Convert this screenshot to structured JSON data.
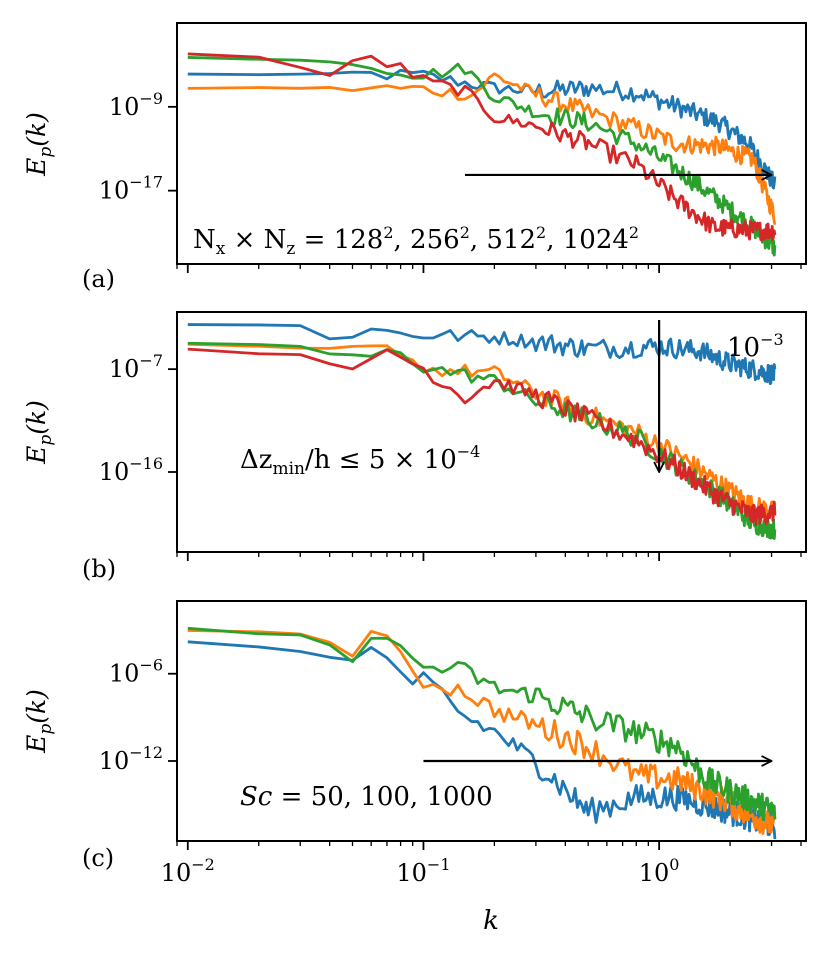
{
  "colors": {
    "c1": "#1f77b4",
    "c2": "#ff7f0e",
    "c3": "#2ca02c",
    "c4": "#d62728"
  },
  "figure": {
    "xlabel": "k",
    "xscale": "log",
    "xlim": [
      0.009,
      4.2
    ],
    "xticks": [
      {
        "value": 0.01,
        "base": "10",
        "exp": "−2"
      },
      {
        "value": 0.1,
        "base": "10",
        "exp": "−1"
      },
      {
        "value": 1,
        "base": "10",
        "exp": "0"
      }
    ]
  },
  "chart_data": [
    {
      "type": "line",
      "panel_label": "(a)",
      "ylabel": "E_p(k)",
      "yscale": "log",
      "ylim_log10": [
        -24,
        -1
      ],
      "yticks": [
        {
          "log10": -9,
          "base": "10",
          "exp": "−9"
        },
        {
          "log10": -17,
          "base": "10",
          "exp": "−17"
        }
      ],
      "annotation": "N_x × N_z = 128², 256², 512², 1024²",
      "arrow": {
        "from": [
          0.15,
          -15.5
        ],
        "to": [
          3.0,
          -15.5
        ]
      },
      "series": [
        {
          "color_key": "c1",
          "kmax": 3.1,
          "points": [
            [
              0.01,
              -5.9
            ],
            [
              0.05,
              -5.9
            ],
            [
              0.1,
              -6.0
            ],
            [
              0.2,
              -7.2
            ],
            [
              0.3,
              -7.5
            ],
            [
              0.5,
              -7.2
            ],
            [
              0.8,
              -7.6
            ],
            [
              1.2,
              -9.0
            ],
            [
              1.8,
              -10.5
            ],
            [
              2.4,
              -12.5
            ],
            [
              3.1,
              -16.5
            ]
          ]
        },
        {
          "color_key": "c2",
          "kmax": 3.1,
          "points": [
            [
              0.01,
              -7.2
            ],
            [
              0.05,
              -7.2
            ],
            [
              0.1,
              -7.3
            ],
            [
              0.16,
              -7.9
            ],
            [
              0.2,
              -6.0
            ],
            [
              0.3,
              -7.8
            ],
            [
              0.5,
              -9.5
            ],
            [
              0.8,
              -11.0
            ],
            [
              1.2,
              -12.5
            ],
            [
              1.8,
              -12.8
            ],
            [
              2.5,
              -14.0
            ],
            [
              3.1,
              -19.5
            ]
          ]
        },
        {
          "color_key": "c3",
          "kmax": 3.1,
          "points": [
            [
              0.01,
              -4.3
            ],
            [
              0.05,
              -4.7
            ],
            [
              0.1,
              -6.0
            ],
            [
              0.15,
              -5.3
            ],
            [
              0.2,
              -8.0
            ],
            [
              0.3,
              -9.5
            ],
            [
              0.5,
              -10.5
            ],
            [
              0.8,
              -12.5
            ],
            [
              1.2,
              -15.0
            ],
            [
              1.8,
              -18.0
            ],
            [
              2.5,
              -20.5
            ],
            [
              3.1,
              -22.5
            ]
          ]
        },
        {
          "color_key": "c4",
          "kmax": 3.1,
          "points": [
            [
              0.01,
              -4.0
            ],
            [
              0.02,
              -4.2
            ],
            [
              0.04,
              -6.0
            ],
            [
              0.06,
              -4.3
            ],
            [
              0.08,
              -5.3
            ],
            [
              0.1,
              -6.5
            ],
            [
              0.15,
              -7.5
            ],
            [
              0.2,
              -10.0
            ],
            [
              0.3,
              -10.8
            ],
            [
              0.5,
              -12.5
            ],
            [
              0.8,
              -14.5
            ],
            [
              1.2,
              -18.0
            ],
            [
              1.7,
              -20.5
            ],
            [
              2.5,
              -20.8
            ],
            [
              3.1,
              -20.8
            ]
          ]
        }
      ]
    },
    {
      "type": "line",
      "panel_label": "(b)",
      "ylabel": "E_p(k)",
      "yscale": "log",
      "ylim_log10": [
        -23,
        -2
      ],
      "yticks": [
        {
          "log10": -7,
          "base": "10",
          "exp": "−7"
        },
        {
          "log10": -16,
          "base": "10",
          "exp": "−16"
        }
      ],
      "annotation": "Δz_min / h ≤ 5 × 10⁻⁴",
      "annotation2": "10⁻³",
      "arrow": {
        "from": [
          1.0,
          -2.7
        ],
        "to": [
          1.0,
          -16.0
        ]
      },
      "series": [
        {
          "color_key": "c1",
          "kmax": 3.1,
          "points": [
            [
              0.01,
              -3.1
            ],
            [
              0.03,
              -3.2
            ],
            [
              0.04,
              -4.3
            ],
            [
              0.06,
              -3.6
            ],
            [
              0.1,
              -4.0
            ],
            [
              0.2,
              -4.2
            ],
            [
              0.3,
              -4.6
            ],
            [
              0.5,
              -5.2
            ],
            [
              1.0,
              -5.0
            ],
            [
              1.5,
              -5.4
            ],
            [
              2.0,
              -6.5
            ],
            [
              3.1,
              -7.5
            ]
          ]
        },
        {
          "color_key": "c2",
          "kmax": 3.1,
          "points": [
            [
              0.01,
              -4.9
            ],
            [
              0.05,
              -5.3
            ],
            [
              0.08,
              -5.3
            ],
            [
              0.1,
              -7.0
            ],
            [
              0.2,
              -7.3
            ],
            [
              0.3,
              -9.0
            ],
            [
              0.5,
              -11.0
            ],
            [
              0.8,
              -12.5
            ],
            [
              1.2,
              -14.5
            ],
            [
              1.8,
              -17.0
            ],
            [
              2.5,
              -19.0
            ],
            [
              3.1,
              -19.5
            ]
          ]
        },
        {
          "color_key": "c3",
          "kmax": 3.1,
          "points": [
            [
              0.01,
              -4.7
            ],
            [
              0.03,
              -5.0
            ],
            [
              0.05,
              -6.2
            ],
            [
              0.08,
              -5.4
            ],
            [
              0.1,
              -6.8
            ],
            [
              0.2,
              -8.0
            ],
            [
              0.3,
              -9.8
            ],
            [
              0.5,
              -11.3
            ],
            [
              0.8,
              -13.0
            ],
            [
              1.2,
              -15.5
            ],
            [
              1.8,
              -18.0
            ],
            [
              2.5,
              -20.5
            ],
            [
              3.1,
              -21.0
            ]
          ]
        },
        {
          "color_key": "c4",
          "kmax": 3.1,
          "points": [
            [
              0.01,
              -5.2
            ],
            [
              0.03,
              -5.8
            ],
            [
              0.05,
              -7.2
            ],
            [
              0.07,
              -5.2
            ],
            [
              0.1,
              -7.0
            ],
            [
              0.15,
              -9.5
            ],
            [
              0.2,
              -8.0
            ],
            [
              0.3,
              -9.3
            ],
            [
              0.5,
              -11.3
            ],
            [
              0.8,
              -13.2
            ],
            [
              1.2,
              -15.6
            ],
            [
              1.8,
              -18.2
            ],
            [
              2.5,
              -19.8
            ],
            [
              3.1,
              -19.5
            ]
          ]
        }
      ]
    },
    {
      "type": "line",
      "panel_label": "(c)",
      "ylabel": "E_p(k)",
      "yscale": "log",
      "ylim_log10": [
        -17.5,
        -1
      ],
      "yticks": [
        {
          "log10": -6,
          "base": "10",
          "exp": "−6"
        },
        {
          "log10": -12,
          "base": "10",
          "exp": "−12"
        }
      ],
      "annotation": "Sc = 50, 100, 1000",
      "arrow": {
        "from": [
          0.1,
          -12.0
        ],
        "to": [
          3.0,
          -12.0
        ]
      },
      "series": [
        {
          "color_key": "c1",
          "kmax": 3.1,
          "points": [
            [
              0.01,
              -3.8
            ],
            [
              0.015,
              -3.8
            ],
            [
              0.03,
              -4.5
            ],
            [
              0.05,
              -5.2
            ],
            [
              0.062,
              -3.8
            ],
            [
              0.07,
              -5.3
            ],
            [
              0.09,
              -7.3
            ],
            [
              0.1,
              -6.3
            ],
            [
              0.12,
              -7.3
            ],
            [
              0.15,
              -9.0
            ],
            [
              0.2,
              -10.0
            ],
            [
              0.3,
              -12.0
            ],
            [
              0.4,
              -14.0
            ],
            [
              0.5,
              -15.5
            ],
            [
              0.8,
              -14.5
            ],
            [
              1.2,
              -14.5
            ],
            [
              2.0,
              -15.5
            ],
            [
              3.1,
              -16.5
            ]
          ]
        },
        {
          "color_key": "c2",
          "kmax": 3.1,
          "points": [
            [
              0.01,
              -3.1
            ],
            [
              0.03,
              -3.2
            ],
            [
              0.05,
              -4.4
            ],
            [
              0.062,
              -3.0
            ],
            [
              0.08,
              -5.0
            ],
            [
              0.1,
              -6.5
            ],
            [
              0.15,
              -7.2
            ],
            [
              0.2,
              -8.5
            ],
            [
              0.3,
              -9.5
            ],
            [
              0.5,
              -11.0
            ],
            [
              0.8,
              -13.0
            ],
            [
              1.2,
              -13.3
            ],
            [
              1.8,
              -14.5
            ],
            [
              2.5,
              -15.8
            ],
            [
              3.1,
              -16.5
            ]
          ]
        },
        {
          "color_key": "c3",
          "kmax": 3.1,
          "points": [
            [
              0.01,
              -2.9
            ],
            [
              0.03,
              -3.4
            ],
            [
              0.05,
              -4.6
            ],
            [
              0.062,
              -2.8
            ],
            [
              0.08,
              -4.5
            ],
            [
              0.1,
              -5.5
            ],
            [
              0.15,
              -5.8
            ],
            [
              0.2,
              -7.0
            ],
            [
              0.3,
              -7.5
            ],
            [
              0.5,
              -9.0
            ],
            [
              0.8,
              -10.0
            ],
            [
              1.2,
              -11.0
            ],
            [
              1.6,
              -13.3
            ],
            [
              2.5,
              -14.8
            ],
            [
              3.1,
              -15.5
            ]
          ]
        }
      ]
    }
  ]
}
